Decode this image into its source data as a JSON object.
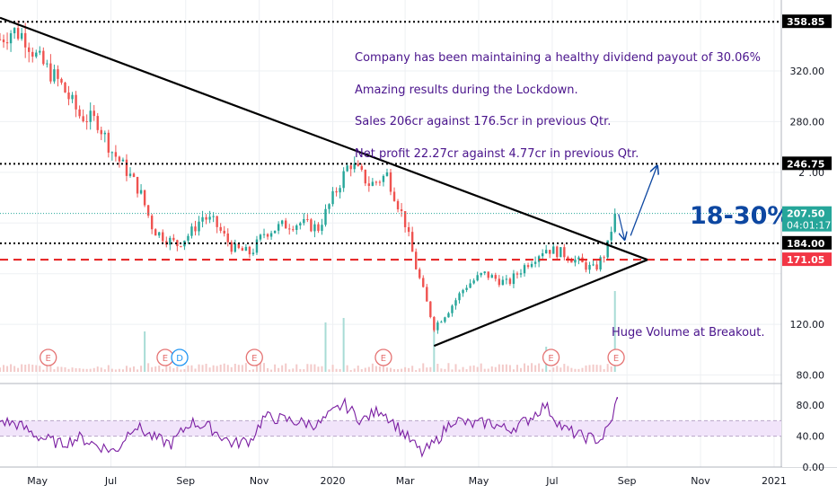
{
  "chart_data": {
    "type": "candlestick",
    "title": "",
    "price_axis": {
      "ticks": [
        80,
        120,
        160,
        200,
        240,
        280,
        320
      ],
      "tick_labels": [
        "80.00",
        "120.00",
        "",
        "",
        "2  .00",
        "280.00",
        "320.00"
      ],
      "range": [
        74,
        376
      ]
    },
    "time_axis": {
      "labels": [
        {
          "label": "May",
          "at": "2019-05-01"
        },
        {
          "label": "Jul",
          "at": "2019-07-01"
        },
        {
          "label": "Sep",
          "at": "2019-09-01"
        },
        {
          "label": "Nov",
          "at": "2019-11-01"
        },
        {
          "label": "2020",
          "at": "2020-01-01"
        },
        {
          "label": "Mar",
          "at": "2020-03-01"
        },
        {
          "label": "May",
          "at": "2020-05-01"
        },
        {
          "label": "Jul",
          "at": "2020-07-01"
        },
        {
          "label": "Sep",
          "at": "2020-09-01"
        },
        {
          "label": "Nov",
          "at": "2020-11-01"
        },
        {
          "label": "2021",
          "at": "2021-01-01"
        }
      ],
      "range": [
        "2019-03-31",
        "2021-01-07"
      ]
    },
    "price_path": [
      [
        "2019-03-31",
        345
      ],
      [
        "2019-04-10",
        352
      ],
      [
        "2019-04-20",
        348
      ],
      [
        "2019-05-01",
        330
      ],
      [
        "2019-05-20",
        310
      ],
      [
        "2019-06-05",
        285
      ],
      [
        "2019-06-20",
        280
      ],
      [
        "2019-07-01",
        258
      ],
      [
        "2019-07-15",
        240
      ],
      [
        "2019-07-25",
        225
      ],
      [
        "2019-08-05",
        195
      ],
      [
        "2019-08-15",
        188
      ],
      [
        "2019-08-25",
        183
      ],
      [
        "2019-09-05",
        192
      ],
      [
        "2019-09-15",
        205
      ],
      [
        "2019-09-25",
        200
      ],
      [
        "2019-10-10",
        180
      ],
      [
        "2019-10-25",
        176
      ],
      [
        "2019-11-05",
        192
      ],
      [
        "2019-11-20",
        198
      ],
      [
        "2019-12-05",
        200
      ],
      [
        "2019-12-20",
        196
      ],
      [
        "2020-01-01",
        220
      ],
      [
        "2020-01-15",
        248
      ],
      [
        "2020-02-01",
        230
      ],
      [
        "2020-02-15",
        238
      ],
      [
        "2020-03-01",
        200
      ],
      [
        "2020-03-10",
        165
      ],
      [
        "2020-03-25",
        118
      ],
      [
        "2020-04-05",
        130
      ],
      [
        "2020-04-20",
        150
      ],
      [
        "2020-05-05",
        160
      ],
      [
        "2020-05-25",
        152
      ],
      [
        "2020-06-10",
        168
      ],
      [
        "2020-06-25",
        180
      ],
      [
        "2020-07-10",
        176
      ],
      [
        "2020-07-25",
        168
      ],
      [
        "2020-08-05",
        163
      ],
      [
        "2020-08-15",
        178
      ],
      [
        "2020-08-22",
        207.5
      ]
    ],
    "rsi": {
      "axis_ticks": [
        0,
        40,
        80
      ],
      "tick_labels": [
        "0.00",
        "40.00",
        "80.00"
      ],
      "band": [
        40,
        60
      ],
      "path": [
        [
          "2019-03-31",
          60
        ],
        [
          "2019-04-15",
          55
        ],
        [
          "2019-05-01",
          40
        ],
        [
          "2019-05-20",
          30
        ],
        [
          "2019-06-05",
          38
        ],
        [
          "2019-06-20",
          28
        ],
        [
          "2019-07-05",
          20
        ],
        [
          "2019-07-20",
          55
        ],
        [
          "2019-08-05",
          38
        ],
        [
          "2019-08-20",
          30
        ],
        [
          "2019-09-05",
          58
        ],
        [
          "2019-09-20",
          52
        ],
        [
          "2019-10-10",
          30
        ],
        [
          "2019-10-25",
          35
        ],
        [
          "2019-11-05",
          65
        ],
        [
          "2019-11-20",
          62
        ],
        [
          "2019-12-05",
          58
        ],
        [
          "2019-12-20",
          55
        ],
        [
          "2020-01-10",
          82
        ],
        [
          "2020-01-25",
          60
        ],
        [
          "2020-02-10",
          75
        ],
        [
          "2020-02-25",
          50
        ],
        [
          "2020-03-15",
          18
        ],
        [
          "2020-03-25",
          30
        ],
        [
          "2020-04-10",
          62
        ],
        [
          "2020-04-25",
          55
        ],
        [
          "2020-05-10",
          58
        ],
        [
          "2020-05-25",
          48
        ],
        [
          "2020-06-10",
          60
        ],
        [
          "2020-06-25",
          80
        ],
        [
          "2020-07-10",
          50
        ],
        [
          "2020-07-25",
          40
        ],
        [
          "2020-08-10",
          35
        ],
        [
          "2020-08-18",
          55
        ],
        [
          "2020-08-24",
          88
        ]
      ]
    },
    "volume": {
      "spikes": [
        [
          "2019-07-30",
          45
        ],
        [
          "2019-12-25",
          55
        ],
        [
          "2020-01-10",
          60
        ],
        [
          "2020-03-25",
          52
        ],
        [
          "2020-06-25",
          28
        ],
        [
          "2020-08-22",
          90
        ]
      ]
    },
    "levels": [
      {
        "price": 358.85,
        "label": "358.85",
        "style": "dotted",
        "color": "#000000"
      },
      {
        "price": 246.75,
        "label": "246.75",
        "style": "dotted",
        "color": "#000000"
      },
      {
        "price": 184.0,
        "label": "184.00",
        "style": "dotted",
        "color": "#000000"
      },
      {
        "price": 171.05,
        "label": "171.05",
        "style": "dashed",
        "color": "#e51c1c"
      },
      {
        "price": 207.5,
        "label": "207.50",
        "sublabel": "04:01:17",
        "style": "dotted-thin",
        "color": "#26a69a"
      }
    ],
    "trendlines": [
      {
        "from": [
          "2019-03-31",
          362
        ],
        "to": [
          "2020-09-18",
          171
        ]
      },
      {
        "from": [
          "2020-03-25",
          103
        ],
        "to": [
          "2020-09-18",
          171
        ]
      }
    ],
    "projection": {
      "from": [
        "2020-09-04",
        190
      ],
      "to": [
        "2020-09-26",
        245
      ]
    },
    "pullback_arrow": {
      "from": [
        "2020-08-25",
        207
      ],
      "to": [
        "2020-08-30",
        187
      ]
    },
    "earnings_markers": [
      {
        "date": "2019-05-10",
        "label": "E"
      },
      {
        "date": "2019-08-15",
        "label": "E"
      },
      {
        "date": "2019-08-27",
        "label": "D"
      },
      {
        "date": "2019-10-28",
        "label": "E"
      },
      {
        "date": "2020-02-12",
        "label": "E"
      },
      {
        "date": "2020-06-30",
        "label": "E"
      },
      {
        "date": "2020-08-23",
        "label": "E"
      }
    ],
    "annotations": [
      "Company has been maintaining a healthy dividend payout of 30.06%",
      "Amazing results during the Lockdown.",
      "Sales 206cr against 176.5cr in previous Qtr.",
      "Net profit 22.27cr against 4.77cr in previous Qtr."
    ],
    "target_label": "18-30%",
    "volume_note": "Huge Volume at Breakout."
  },
  "colors": {
    "up": "#26a69a",
    "down": "#ef5350",
    "annotation": "#4a148c",
    "target": "#0d47a1",
    "rsi_line": "#7b1fa2",
    "rsi_band": "#f1e4fa",
    "grid": "#eef0f3",
    "axis_text": "#131722"
  }
}
